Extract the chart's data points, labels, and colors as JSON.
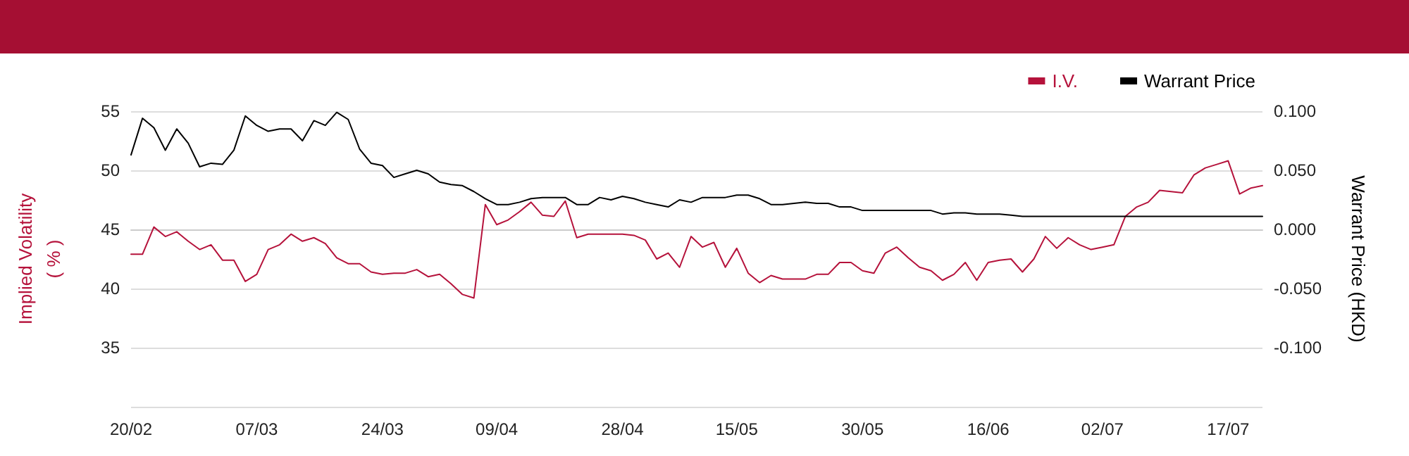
{
  "chart_data": {
    "type": "line",
    "ylabel": "Implied Volatility\n( % )",
    "y2label": "Warrant Price (HKD)",
    "categories": [
      "20/02",
      null,
      null,
      null,
      null,
      null,
      null,
      null,
      null,
      null,
      null,
      "07/03",
      null,
      null,
      null,
      null,
      null,
      null,
      null,
      null,
      null,
      null,
      "24/03",
      null,
      null,
      null,
      null,
      null,
      null,
      null,
      null,
      null,
      "09/04",
      null,
      null,
      null,
      null,
      null,
      null,
      null,
      null,
      null,
      null,
      "28/04",
      null,
      null,
      null,
      null,
      null,
      null,
      null,
      null,
      null,
      "15/05",
      null,
      null,
      null,
      null,
      null,
      null,
      null,
      null,
      null,
      null,
      "30/05",
      null,
      null,
      null,
      null,
      null,
      null,
      null,
      null,
      null,
      null,
      "16/06",
      null,
      null,
      null,
      null,
      null,
      null,
      null,
      null,
      null,
      "02/07",
      null,
      null,
      null,
      null,
      null,
      null,
      null,
      null,
      null,
      null,
      "17/07",
      null,
      null,
      null
    ],
    "series": [
      {
        "name": "I.V.",
        "color": "#b5123b",
        "axis": "y",
        "values": [
          42.9,
          42.9,
          45.2,
          44.4,
          44.8,
          44.0,
          43.3,
          43.7,
          42.4,
          42.4,
          40.6,
          41.2,
          43.3,
          43.7,
          44.6,
          44.0,
          44.3,
          43.8,
          42.6,
          42.1,
          42.1,
          41.4,
          41.2,
          41.3,
          41.3,
          41.6,
          41.0,
          41.2,
          40.4,
          39.5,
          39.2,
          47.1,
          45.4,
          45.8,
          46.5,
          47.3,
          46.2,
          46.1,
          47.4,
          44.3,
          44.6,
          44.6,
          44.6,
          44.6,
          44.5,
          44.1,
          42.5,
          43.0,
          41.8,
          44.4,
          43.5,
          43.9,
          41.8,
          43.4,
          41.3,
          40.5,
          41.1,
          40.8,
          40.8,
          40.8,
          41.2,
          41.2,
          42.2,
          42.2,
          41.5,
          41.3,
          43.0,
          43.5,
          42.6,
          41.8,
          41.5,
          40.7,
          41.2,
          42.2,
          40.7,
          42.2,
          42.4,
          42.5,
          41.4,
          42.5,
          44.4,
          43.4,
          44.3,
          43.7,
          43.3,
          43.5,
          43.7,
          46.1,
          46.9,
          47.3,
          48.3,
          48.2,
          48.1,
          49.6,
          50.2,
          50.5,
          50.8,
          48.0,
          48.5,
          48.7
        ]
      },
      {
        "name": "Warrant Price",
        "color": "#000000",
        "axis": "y2",
        "values": [
          0.063,
          0.094,
          0.086,
          0.067,
          0.085,
          0.073,
          0.053,
          0.056,
          0.055,
          0.067,
          0.096,
          0.088,
          0.083,
          0.085,
          0.085,
          0.075,
          0.092,
          0.088,
          0.099,
          0.093,
          0.068,
          0.056,
          0.054,
          0.044,
          0.047,
          0.05,
          0.047,
          0.04,
          0.038,
          0.037,
          0.032,
          0.026,
          0.021,
          0.021,
          0.023,
          0.026,
          0.027,
          0.027,
          0.027,
          0.021,
          0.021,
          0.027,
          0.025,
          0.028,
          0.026,
          0.023,
          0.021,
          0.019,
          0.025,
          0.023,
          0.027,
          0.027,
          0.027,
          0.029,
          0.029,
          0.026,
          0.021,
          0.021,
          0.022,
          0.023,
          0.022,
          0.022,
          0.019,
          0.019,
          0.016,
          0.016,
          0.016,
          0.016,
          0.016,
          0.016,
          0.016,
          0.013,
          0.014,
          0.014,
          0.013,
          0.013,
          0.013,
          0.012,
          0.011,
          0.011,
          0.011,
          0.011,
          0.011,
          0.011,
          0.011,
          0.011,
          0.011,
          0.011,
          0.011,
          0.011,
          0.011,
          0.011,
          0.011,
          0.011,
          0.011,
          0.011,
          0.011,
          0.011,
          0.011,
          0.011
        ]
      }
    ],
    "ylim": [
      30,
      55
    ],
    "yticks": [
      {
        "value": 30,
        "label": null
      },
      35,
      40,
      45,
      50,
      55
    ],
    "y2lim": [
      -0.15,
      0.1
    ],
    "y2ticks": [
      {
        "value": -0.15,
        "label": null
      },
      {
        "value": -0.1,
        "label": "-0.100"
      },
      {
        "value": -0.05,
        "label": "-0.050"
      },
      {
        "value": 0,
        "label": "0.000"
      },
      {
        "value": 0.05,
        "label": "0.050"
      },
      {
        "value": 0.1,
        "label": "0.100"
      }
    ],
    "grid": "y",
    "legend": "top right",
    "marker": "none",
    "line_style": "solid"
  }
}
